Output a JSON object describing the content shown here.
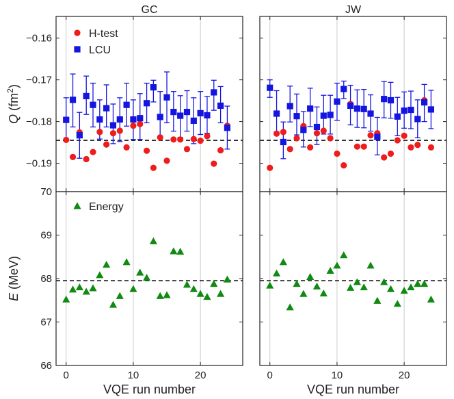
{
  "chart_data": {
    "type": "scatter",
    "columns": [
      "GC",
      "JW"
    ],
    "xlabel": "VQE run number",
    "xlim": [
      -1.5,
      26.3
    ],
    "xticks": [
      0,
      10,
      20
    ],
    "xtick_labels": [
      "0",
      "10",
      "20"
    ],
    "top": {
      "ylabel_var": "Q",
      "ylabel_unit_pre": "(fm",
      "ylabel_unit_sup": "2",
      "ylabel_unit_post": ")",
      "ylim": [
        -0.1968,
        -0.1548
      ],
      "yticks": [
        -0.19,
        -0.18,
        -0.17,
        -0.16
      ],
      "ytick_labels": [
        "−0.19",
        "−0.18",
        "−0.17",
        "−0.16"
      ],
      "reference_line": -0.1845,
      "legend": [
        {
          "name": "H-test",
          "marker": "circle",
          "color": "#ee1c1c"
        },
        {
          "name": "LCU",
          "marker": "square",
          "color": "#1515e0"
        }
      ]
    },
    "bottom": {
      "ylabel_var": "E",
      "ylabel_unit": "(MeV)",
      "ylim": [
        66.0,
        70.0
      ],
      "yticks": [
        66,
        67,
        68,
        69,
        70
      ],
      "ytick_labels": [
        "66",
        "67",
        "68",
        "69",
        "70"
      ],
      "reference_line": 67.95,
      "legend": [
        {
          "name": "Energy",
          "marker": "triangle",
          "color": "#108a10"
        }
      ]
    },
    "panels": [
      {
        "title": "GC",
        "htest": [
          {
            "x": 0,
            "y": -0.1844
          },
          {
            "x": 1,
            "y": -0.1885
          },
          {
            "x": 2,
            "y": -0.1826
          },
          {
            "x": 3,
            "y": -0.189
          },
          {
            "x": 4,
            "y": -0.1873
          },
          {
            "x": 5,
            "y": -0.1825
          },
          {
            "x": 6,
            "y": -0.1855
          },
          {
            "x": 7,
            "y": -0.1828
          },
          {
            "x": 8,
            "y": -0.1822
          },
          {
            "x": 9,
            "y": -0.1862
          },
          {
            "x": 10,
            "y": -0.181
          },
          {
            "x": 11,
            "y": -0.1806
          },
          {
            "x": 12,
            "y": -0.187
          },
          {
            "x": 13,
            "y": -0.1911
          },
          {
            "x": 14,
            "y": -0.1838
          },
          {
            "x": 15,
            "y": -0.1894
          },
          {
            "x": 16,
            "y": -0.1843
          },
          {
            "x": 17,
            "y": -0.1843
          },
          {
            "x": 18,
            "y": -0.1866
          },
          {
            "x": 19,
            "y": -0.1842
          },
          {
            "x": 20,
            "y": -0.1846
          },
          {
            "x": 21,
            "y": -0.1835
          },
          {
            "x": 22,
            "y": -0.1901
          },
          {
            "x": 23,
            "y": -0.1869
          },
          {
            "x": 24,
            "y": -0.181
          }
        ],
        "lcu": [
          {
            "x": 0,
            "y": -0.1796,
            "lo": -0.1843,
            "hi": -0.1743
          },
          {
            "x": 1,
            "y": -0.1748,
            "lo": -0.1813,
            "hi": -0.1686
          },
          {
            "x": 2,
            "y": -0.1833,
            "lo": -0.1888,
            "hi": -0.1778
          },
          {
            "x": 3,
            "y": -0.1739,
            "lo": -0.1783,
            "hi": -0.1691
          },
          {
            "x": 4,
            "y": -0.176,
            "lo": -0.1813,
            "hi": -0.1708
          },
          {
            "x": 5,
            "y": -0.1795,
            "lo": -0.1842,
            "hi": -0.1748
          },
          {
            "x": 6,
            "y": -0.1768,
            "lo": -0.1813,
            "hi": -0.1712
          },
          {
            "x": 7,
            "y": -0.1809,
            "lo": -0.1853,
            "hi": -0.1758
          },
          {
            "x": 8,
            "y": -0.1795,
            "lo": -0.1848,
            "hi": -0.1743
          },
          {
            "x": 9,
            "y": -0.176,
            "lo": -0.1811,
            "hi": -0.1708
          },
          {
            "x": 10,
            "y": -0.1795,
            "lo": -0.1843,
            "hi": -0.1748
          },
          {
            "x": 11,
            "y": -0.1792,
            "lo": -0.1843,
            "hi": -0.1733
          },
          {
            "x": 12,
            "y": -0.1756,
            "lo": -0.1803,
            "hi": -0.1708
          },
          {
            "x": 13,
            "y": -0.1718,
            "lo": -0.1753,
            "hi": -0.1701
          },
          {
            "x": 14,
            "y": -0.1789,
            "lo": -0.1838,
            "hi": -0.1728
          },
          {
            "x": 15,
            "y": -0.1742,
            "lo": -0.1803,
            "hi": -0.1681
          },
          {
            "x": 16,
            "y": -0.1777,
            "lo": -0.1823,
            "hi": -0.1728
          },
          {
            "x": 17,
            "y": -0.1786,
            "lo": -0.1838,
            "hi": -0.1738
          },
          {
            "x": 18,
            "y": -0.1777,
            "lo": -0.1823,
            "hi": -0.1726
          },
          {
            "x": 19,
            "y": -0.1798,
            "lo": -0.1853,
            "hi": -0.1743
          },
          {
            "x": 20,
            "y": -0.178,
            "lo": -0.1831,
            "hi": -0.1728
          },
          {
            "x": 21,
            "y": -0.1785,
            "lo": -0.1828,
            "hi": -0.174
          },
          {
            "x": 22,
            "y": -0.173,
            "lo": -0.1773,
            "hi": -0.1701
          },
          {
            "x": 23,
            "y": -0.1762,
            "lo": -0.1803,
            "hi": -0.1716
          },
          {
            "x": 24,
            "y": -0.1815,
            "lo": -0.1866,
            "hi": -0.1763
          }
        ],
        "energy": [
          {
            "x": 0,
            "y": 67.52
          },
          {
            "x": 1,
            "y": 67.75
          },
          {
            "x": 2,
            "y": 67.8
          },
          {
            "x": 3,
            "y": 67.7
          },
          {
            "x": 4,
            "y": 67.78
          },
          {
            "x": 5,
            "y": 68.08
          },
          {
            "x": 6,
            "y": 68.32
          },
          {
            "x": 7,
            "y": 67.4
          },
          {
            "x": 8,
            "y": 67.6
          },
          {
            "x": 9,
            "y": 68.38
          },
          {
            "x": 10,
            "y": 67.76
          },
          {
            "x": 11,
            "y": 68.14
          },
          {
            "x": 12,
            "y": 68.02
          },
          {
            "x": 13,
            "y": 68.86
          },
          {
            "x": 14,
            "y": 67.6
          },
          {
            "x": 15,
            "y": 67.62
          },
          {
            "x": 16,
            "y": 68.63
          },
          {
            "x": 17,
            "y": 68.62
          },
          {
            "x": 18,
            "y": 67.86
          },
          {
            "x": 19,
            "y": 67.76
          },
          {
            "x": 20,
            "y": 67.65
          },
          {
            "x": 21,
            "y": 67.58
          },
          {
            "x": 22,
            "y": 67.88
          },
          {
            "x": 23,
            "y": 67.65
          },
          {
            "x": 24,
            "y": 67.98
          }
        ]
      },
      {
        "title": "JW",
        "htest": [
          {
            "x": 0,
            "y": -0.1911
          },
          {
            "x": 1,
            "y": -0.1829
          },
          {
            "x": 2,
            "y": -0.1825
          },
          {
            "x": 3,
            "y": -0.1866
          },
          {
            "x": 4,
            "y": -0.184
          },
          {
            "x": 5,
            "y": -0.1811
          },
          {
            "x": 6,
            "y": -0.1862
          },
          {
            "x": 7,
            "y": -0.1828
          },
          {
            "x": 8,
            "y": -0.1822
          },
          {
            "x": 9,
            "y": -0.184
          },
          {
            "x": 10,
            "y": -0.1877
          },
          {
            "x": 11,
            "y": -0.1905
          },
          {
            "x": 12,
            "y": -0.1758
          },
          {
            "x": 13,
            "y": -0.186
          },
          {
            "x": 14,
            "y": -0.186
          },
          {
            "x": 15,
            "y": -0.1833
          },
          {
            "x": 16,
            "y": -0.1828
          },
          {
            "x": 17,
            "y": -0.1886
          },
          {
            "x": 18,
            "y": -0.1877
          },
          {
            "x": 19,
            "y": -0.1845
          },
          {
            "x": 20,
            "y": -0.1834
          },
          {
            "x": 21,
            "y": -0.1862
          },
          {
            "x": 22,
            "y": -0.1856
          },
          {
            "x": 23,
            "y": -0.1749
          },
          {
            "x": 24,
            "y": -0.1862
          }
        ],
        "lcu": [
          {
            "x": 0,
            "y": -0.1719,
            "lo": -0.1742,
            "hi": -0.17
          },
          {
            "x": 1,
            "y": -0.1781,
            "lo": -0.1825,
            "hi": -0.1726
          },
          {
            "x": 2,
            "y": -0.1849,
            "lo": -0.1889,
            "hi": -0.1801
          },
          {
            "x": 3,
            "y": -0.1763,
            "lo": -0.1801,
            "hi": -0.1715
          },
          {
            "x": 4,
            "y": -0.1787,
            "lo": -0.1832,
            "hi": -0.1734
          },
          {
            "x": 5,
            "y": -0.182,
            "lo": -0.1861,
            "hi": -0.1776
          },
          {
            "x": 6,
            "y": -0.1769,
            "lo": -0.1812,
            "hi": -0.172
          },
          {
            "x": 7,
            "y": -0.1813,
            "lo": -0.1855,
            "hi": -0.1765
          },
          {
            "x": 8,
            "y": -0.1786,
            "lo": -0.183,
            "hi": -0.1737
          },
          {
            "x": 9,
            "y": -0.1784,
            "lo": -0.183,
            "hi": -0.1737
          },
          {
            "x": 10,
            "y": -0.1752,
            "lo": -0.1797,
            "hi": -0.1708
          },
          {
            "x": 11,
            "y": -0.1722,
            "lo": -0.1745,
            "hi": -0.1703
          },
          {
            "x": 12,
            "y": -0.1762,
            "lo": -0.1808,
            "hi": -0.1713
          },
          {
            "x": 13,
            "y": -0.1769,
            "lo": -0.1814,
            "hi": -0.1724
          },
          {
            "x": 14,
            "y": -0.177,
            "lo": -0.1815,
            "hi": -0.1723
          },
          {
            "x": 15,
            "y": -0.1781,
            "lo": -0.1823,
            "hi": -0.1736
          },
          {
            "x": 16,
            "y": -0.1837,
            "lo": -0.188,
            "hi": -0.179
          },
          {
            "x": 17,
            "y": -0.1746,
            "lo": -0.1791,
            "hi": -0.1704
          },
          {
            "x": 18,
            "y": -0.1749,
            "lo": -0.1792,
            "hi": -0.1706
          },
          {
            "x": 19,
            "y": -0.1788,
            "lo": -0.1834,
            "hi": -0.1742
          },
          {
            "x": 20,
            "y": -0.1774,
            "lo": -0.1816,
            "hi": -0.1729
          },
          {
            "x": 21,
            "y": -0.1772,
            "lo": -0.1817,
            "hi": -0.1727
          },
          {
            "x": 22,
            "y": -0.1794,
            "lo": -0.1839,
            "hi": -0.1748
          },
          {
            "x": 23,
            "y": -0.1754,
            "lo": -0.18,
            "hi": -0.1711
          },
          {
            "x": 24,
            "y": -0.1771,
            "lo": -0.1817,
            "hi": -0.1725
          }
        ],
        "energy": [
          {
            "x": 0,
            "y": 67.84
          },
          {
            "x": 1,
            "y": 68.12
          },
          {
            "x": 2,
            "y": 68.38
          },
          {
            "x": 3,
            "y": 67.34
          },
          {
            "x": 4,
            "y": 67.88
          },
          {
            "x": 5,
            "y": 67.65
          },
          {
            "x": 6,
            "y": 68.04
          },
          {
            "x": 7,
            "y": 67.82
          },
          {
            "x": 8,
            "y": 67.66
          },
          {
            "x": 9,
            "y": 68.18
          },
          {
            "x": 10,
            "y": 68.3
          },
          {
            "x": 11,
            "y": 68.54
          },
          {
            "x": 12,
            "y": 67.79
          },
          {
            "x": 13,
            "y": 67.92
          },
          {
            "x": 14,
            "y": 67.8
          },
          {
            "x": 15,
            "y": 68.3
          },
          {
            "x": 16,
            "y": 67.49
          },
          {
            "x": 17,
            "y": 67.92
          },
          {
            "x": 18,
            "y": 67.76
          },
          {
            "x": 19,
            "y": 67.42
          },
          {
            "x": 20,
            "y": 67.72
          },
          {
            "x": 21,
            "y": 67.8
          },
          {
            "x": 22,
            "y": 67.88
          },
          {
            "x": 23,
            "y": 67.88
          },
          {
            "x": 24,
            "y": 67.52
          }
        ]
      }
    ]
  }
}
